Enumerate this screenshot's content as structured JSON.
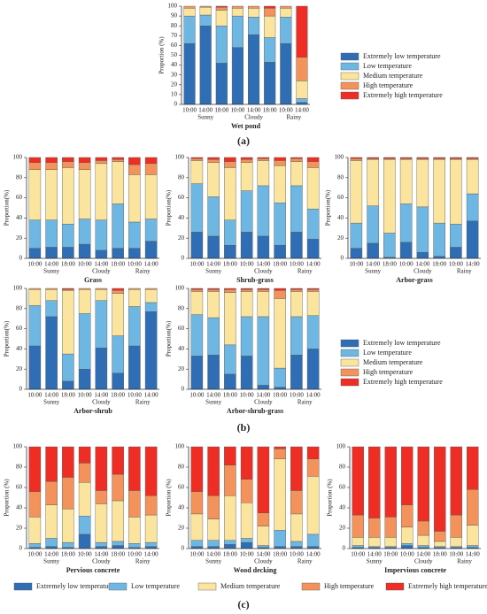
{
  "panels": [
    "(a)",
    "(b)",
    "(c)"
  ],
  "chart_data": [
    {
      "type": "bar",
      "stacked": true,
      "title": "Wet pond",
      "y_label": "Proportion (%)",
      "categories": [
        "10:00",
        "14:00",
        "18:00",
        "10:00",
        "14:00",
        "18:00",
        "10:00",
        "14:00"
      ],
      "groups": [
        "Sunny",
        "Cloudy",
        "Rainy"
      ],
      "ylim": [
        0,
        100
      ],
      "yticks": [
        0,
        10,
        20,
        30,
        40,
        50,
        60,
        70,
        80,
        90,
        100
      ],
      "series": [
        {
          "name": "Extremely low temperature",
          "color": "#2f6eb5",
          "values": [
            62,
            80,
            42,
            58,
            71,
            43,
            62,
            2
          ]
        },
        {
          "name": "Low temperature",
          "color": "#6fb7e3",
          "values": [
            28,
            11,
            38,
            32,
            18,
            25,
            27,
            4
          ]
        },
        {
          "name": "Medium temperature",
          "color": "#fbe49e",
          "values": [
            8,
            8,
            16,
            8,
            9,
            22,
            9,
            18
          ]
        },
        {
          "name": "High temperature",
          "color": "#f3925b",
          "values": [
            2,
            1,
            3,
            2,
            2,
            8,
            2,
            24
          ]
        },
        {
          "name": "Extremely high temperature",
          "color": "#ee2d24",
          "values": [
            0,
            0,
            1,
            0,
            0,
            2,
            0,
            52
          ]
        }
      ]
    },
    {
      "type": "bar",
      "stacked": true,
      "title": "Grass",
      "y_label": "Proportion(%)",
      "categories": [
        "10:00",
        "14:00",
        "18:00",
        "10:00",
        "14:00",
        "18:00",
        "10:00",
        "14:00"
      ],
      "groups": [
        "Sunny",
        "Cloudy",
        "Rainy"
      ],
      "ylim": [
        0,
        100
      ],
      "yticks": [
        0,
        20,
        40,
        60,
        80,
        100
      ],
      "series": [
        {
          "name": "Extremely low temperature",
          "color": "#2f6eb5",
          "values": [
            10,
            11,
            11,
            14,
            8,
            10,
            10,
            17
          ]
        },
        {
          "name": "Low temperature",
          "color": "#6fb7e3",
          "values": [
            28,
            27,
            23,
            25,
            30,
            44,
            26,
            22
          ]
        },
        {
          "name": "Medium temperature",
          "color": "#fbe49e",
          "values": [
            50,
            50,
            56,
            49,
            56,
            42,
            47,
            44
          ]
        },
        {
          "name": "High temperature",
          "color": "#f3925b",
          "values": [
            7,
            7,
            6,
            7,
            3,
            2,
            10,
            11
          ]
        },
        {
          "name": "Extremely high temperature",
          "color": "#ee2d24",
          "values": [
            5,
            5,
            4,
            5,
            3,
            2,
            7,
            6
          ]
        }
      ]
    },
    {
      "type": "bar",
      "stacked": true,
      "title": "Shrub-grass",
      "y_label": "Proportion(%)",
      "categories": [
        "10:00",
        "14:00",
        "18:00",
        "10:00",
        "14:00",
        "18:00",
        "10:00",
        "14:00"
      ],
      "groups": [
        "Sunny",
        "Cloudy",
        "Rainy"
      ],
      "ylim": [
        0,
        100
      ],
      "yticks": [
        0,
        20,
        40,
        60,
        80,
        100
      ],
      "series": [
        {
          "name": "Extremely low temperature",
          "color": "#2f6eb5",
          "values": [
            26,
            22,
            13,
            26,
            22,
            13,
            26,
            19
          ]
        },
        {
          "name": "Low temperature",
          "color": "#6fb7e3",
          "values": [
            48,
            39,
            25,
            41,
            50,
            42,
            46,
            30
          ]
        },
        {
          "name": "Medium temperature",
          "color": "#fbe49e",
          "values": [
            23,
            34,
            52,
            28,
            25,
            37,
            24,
            41
          ]
        },
        {
          "name": "High temperature",
          "color": "#f3925b",
          "values": [
            2,
            3,
            6,
            3,
            2,
            5,
            3,
            6
          ]
        },
        {
          "name": "Extremely high temperature",
          "color": "#ee2d24",
          "values": [
            1,
            2,
            4,
            2,
            1,
            3,
            1,
            4
          ]
        }
      ]
    },
    {
      "type": "bar",
      "stacked": true,
      "title": "Arbor-grass",
      "y_label": "Proportion(%)",
      "categories": [
        "10:00",
        "14:00",
        "18:00",
        "10:00",
        "14:00",
        "18:00",
        "10:00",
        "14:00"
      ],
      "groups": [
        "Sunny",
        "Cloudy",
        "Rainy"
      ],
      "ylim": [
        0,
        100
      ],
      "yticks": [
        0,
        20,
        40,
        60,
        80,
        100
      ],
      "series": [
        {
          "name": "Extremely low temperature",
          "color": "#2f6eb5",
          "values": [
            10,
            15,
            1,
            16,
            6,
            2,
            11,
            37
          ]
        },
        {
          "name": "Low temperature",
          "color": "#6fb7e3",
          "values": [
            25,
            37,
            24,
            38,
            45,
            33,
            23,
            27
          ]
        },
        {
          "name": "Medium temperature",
          "color": "#fbe49e",
          "values": [
            62,
            46,
            73,
            44,
            47,
            63,
            64,
            34
          ]
        },
        {
          "name": "High temperature",
          "color": "#f3925b",
          "values": [
            2,
            1,
            1,
            1,
            1,
            1,
            1,
            1
          ]
        },
        {
          "name": "Extremely high temperature",
          "color": "#ee2d24",
          "values": [
            1,
            1,
            1,
            1,
            1,
            1,
            1,
            1
          ]
        }
      ]
    },
    {
      "type": "bar",
      "stacked": true,
      "title": "Arbor-shrub",
      "y_label": "Proportion(%)",
      "categories": [
        "10:00",
        "14:00",
        "18:00",
        "10:00",
        "14:00",
        "18:00",
        "10:00",
        "14:00"
      ],
      "groups": [
        "Sunny",
        "Cloudy",
        "Rainy"
      ],
      "ylim": [
        0,
        100
      ],
      "yticks": [
        0,
        20,
        40,
        60,
        80,
        100
      ],
      "series": [
        {
          "name": "Extremely low temperature",
          "color": "#2f6eb5",
          "values": [
            43,
            72,
            8,
            20,
            41,
            16,
            43,
            77
          ]
        },
        {
          "name": "Low temperature",
          "color": "#6fb7e3",
          "values": [
            40,
            16,
            27,
            55,
            47,
            37,
            39,
            9
          ]
        },
        {
          "name": "Medium temperature",
          "color": "#fbe49e",
          "values": [
            16,
            11,
            63,
            24,
            11,
            42,
            17,
            13
          ]
        },
        {
          "name": "High temperature",
          "color": "#f3925b",
          "values": [
            1,
            1,
            1,
            1,
            1,
            3,
            1,
            1
          ]
        },
        {
          "name": "Extremely high temperature",
          "color": "#ee2d24",
          "values": [
            0,
            0,
            1,
            0,
            0,
            2,
            0,
            0
          ]
        }
      ]
    },
    {
      "type": "bar",
      "stacked": true,
      "title": "Arbor-shrub-grass",
      "y_label": "Proportion(%)",
      "categories": [
        "10:00",
        "14:00",
        "18:00",
        "10:00",
        "14:00",
        "18:00",
        "10:00",
        "14:00"
      ],
      "groups": [
        "Sunny",
        "Cloudy",
        "Rainy"
      ],
      "ylim": [
        0,
        100
      ],
      "yticks": [
        0,
        20,
        40,
        60,
        80,
        100
      ],
      "series": [
        {
          "name": "Extremely low temperature",
          "color": "#2f6eb5",
          "values": [
            33,
            34,
            15,
            33,
            4,
            2,
            34,
            40
          ]
        },
        {
          "name": "Low temperature",
          "color": "#6fb7e3",
          "values": [
            41,
            37,
            29,
            39,
            68,
            19,
            38,
            33
          ]
        },
        {
          "name": "Medium temperature",
          "color": "#fbe49e",
          "values": [
            23,
            26,
            52,
            25,
            25,
            69,
            25,
            24
          ]
        },
        {
          "name": "High temperature",
          "color": "#f3925b",
          "values": [
            2,
            2,
            3,
            2,
            2,
            8,
            2,
            2
          ]
        },
        {
          "name": "Extremely high temperature",
          "color": "#ee2d24",
          "values": [
            1,
            1,
            1,
            1,
            1,
            2,
            1,
            1
          ]
        }
      ]
    },
    {
      "type": "bar",
      "stacked": true,
      "title": "Pervious concrete",
      "y_label": "Proportion (%)",
      "categories": [
        "10:00",
        "14:00",
        "18:00",
        "10:00",
        "14:00",
        "18:00",
        "10:00",
        "14:00"
      ],
      "groups": [
        "Sunny",
        "Cloudy",
        "Rainy"
      ],
      "ylim": [
        0,
        100
      ],
      "yticks": [
        0,
        20,
        40,
        60,
        80,
        100
      ],
      "series": [
        {
          "name": "Extremely low temperature",
          "color": "#2f6eb5",
          "values": [
            1,
            2,
            1,
            14,
            2,
            3,
            1,
            2
          ]
        },
        {
          "name": "Low temperature",
          "color": "#6fb7e3",
          "values": [
            4,
            8,
            5,
            18,
            4,
            4,
            4,
            4
          ]
        },
        {
          "name": "Medium temperature",
          "color": "#fbe49e",
          "values": [
            26,
            33,
            33,
            33,
            38,
            40,
            26,
            27
          ]
        },
        {
          "name": "High temperature",
          "color": "#f3925b",
          "values": [
            25,
            23,
            31,
            19,
            13,
            26,
            26,
            19
          ]
        },
        {
          "name": "Extremely high temperature",
          "color": "#ee2d24",
          "values": [
            44,
            34,
            30,
            16,
            43,
            27,
            43,
            48
          ]
        }
      ]
    },
    {
      "type": "bar",
      "stacked": true,
      "title": "Wood decking",
      "y_label": "Proportion (%)",
      "categories": [
        "10:00",
        "14:00",
        "18:00",
        "10:00",
        "14:00",
        "18:00",
        "10:00",
        "14:00"
      ],
      "groups": [
        "Sunny",
        "Cloudy",
        "Rainy"
      ],
      "ylim": [
        0,
        100
      ],
      "yticks": [
        0,
        20,
        40,
        60,
        80,
        100
      ],
      "series": [
        {
          "name": "Extremely low temperature",
          "color": "#2f6eb5",
          "values": [
            2,
            2,
            4,
            6,
            1,
            2,
            2,
            2
          ]
        },
        {
          "name": "Low temperature",
          "color": "#6fb7e3",
          "values": [
            6,
            6,
            4,
            4,
            2,
            16,
            5,
            12
          ]
        },
        {
          "name": "Medium temperature",
          "color": "#fbe49e",
          "values": [
            26,
            21,
            44,
            35,
            19,
            70,
            27,
            57
          ]
        },
        {
          "name": "High temperature",
          "color": "#f3925b",
          "values": [
            22,
            23,
            30,
            23,
            13,
            10,
            23,
            17
          ]
        },
        {
          "name": "Extremely high temperature",
          "color": "#ee2d24",
          "values": [
            44,
            48,
            18,
            32,
            65,
            2,
            43,
            12
          ]
        }
      ]
    },
    {
      "type": "bar",
      "stacked": true,
      "title": "Impervious concrete",
      "y_label": "Proportion (%)",
      "categories": [
        "10:00",
        "14:00",
        "18:00",
        "10:00",
        "14:00",
        "18:00",
        "10:00",
        "14:00"
      ],
      "groups": [
        "Sunny",
        "Cloudy",
        "Rainy"
      ],
      "ylim": [
        0,
        100
      ],
      "yticks": [
        0,
        20,
        40,
        60,
        80,
        100
      ],
      "series": [
        {
          "name": "Extremely low temperature",
          "color": "#2f6eb5",
          "values": [
            1,
            1,
            1,
            3,
            1,
            1,
            1,
            1
          ]
        },
        {
          "name": "Low temperature",
          "color": "#6fb7e3",
          "values": [
            2,
            1,
            1,
            2,
            2,
            1,
            1,
            2
          ]
        },
        {
          "name": "Medium temperature",
          "color": "#fbe49e",
          "values": [
            8,
            9,
            9,
            16,
            10,
            5,
            9,
            20
          ]
        },
        {
          "name": "High temperature",
          "color": "#f3925b",
          "values": [
            22,
            19,
            20,
            22,
            14,
            10,
            22,
            35
          ]
        },
        {
          "name": "Extremely high temperature",
          "color": "#ee2d24",
          "values": [
            67,
            70,
            69,
            57,
            73,
            83,
            67,
            42
          ]
        }
      ]
    }
  ]
}
